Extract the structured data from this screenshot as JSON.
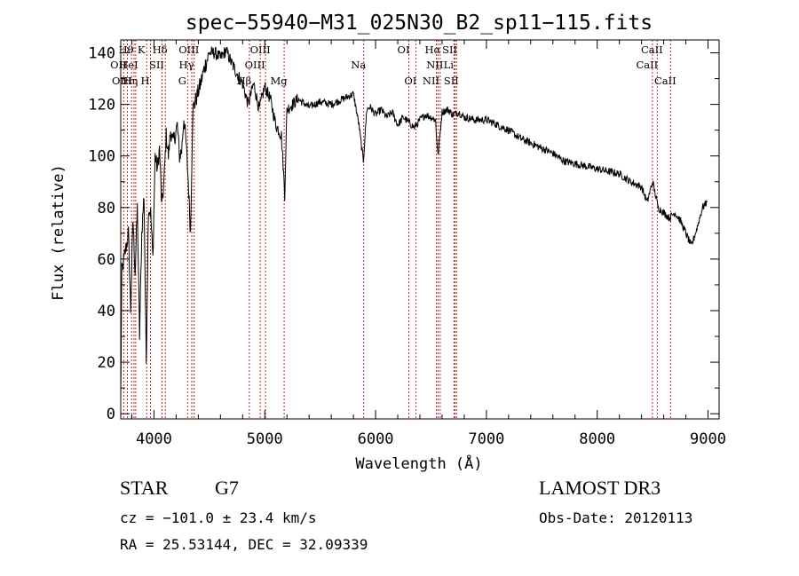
{
  "chart_data": {
    "type": "line",
    "title": "spec−55940−M31_025N30_B2_sp11−115.fits",
    "xlabel": "Wavelength (Å)",
    "ylabel": "Flux (relative)",
    "xlim": [
      3700,
      9100
    ],
    "ylim": [
      -2,
      145
    ],
    "xticks": [
      4000,
      5000,
      6000,
      7000,
      8000,
      9000
    ],
    "yticks": [
      0,
      20,
      40,
      60,
      80,
      100,
      120,
      140
    ],
    "line_color": "#000000",
    "marker_color": "#cc2222",
    "spectrum": {
      "name": "flux",
      "x": [
        3700,
        3710,
        3730,
        3750,
        3770,
        3790,
        3810,
        3830,
        3850,
        3870,
        3890,
        3910,
        3930,
        3950,
        3970,
        3990,
        4010,
        4030,
        4050,
        4070,
        4090,
        4110,
        4130,
        4150,
        4170,
        4190,
        4210,
        4230,
        4250,
        4270,
        4290,
        4310,
        4330,
        4350,
        4380,
        4420,
        4460,
        4500,
        4550,
        4600,
        4650,
        4700,
        4750,
        4800,
        4850,
        4900,
        4950,
        5000,
        5050,
        5100,
        5150,
        5180,
        5200,
        5250,
        5300,
        5400,
        5500,
        5600,
        5700,
        5800,
        5850,
        5890,
        5920,
        5950,
        6000,
        6050,
        6100,
        6150,
        6200,
        6250,
        6300,
        6350,
        6400,
        6450,
        6500,
        6540,
        6563,
        6600,
        6650,
        6700,
        6750,
        6800,
        6900,
        7000,
        7100,
        7200,
        7300,
        7400,
        7500,
        7600,
        7700,
        7800,
        7900,
        8000,
        8100,
        8200,
        8300,
        8400,
        8450,
        8500,
        8550,
        8600,
        8650,
        8700,
        8750,
        8800,
        8850,
        8900,
        8950,
        8990
      ],
      "y": [
        5,
        55,
        60,
        65,
        70,
        40,
        75,
        55,
        80,
        30,
        70,
        85,
        20,
        80,
        78,
        60,
        100,
        95,
        103,
        80,
        90,
        108,
        100,
        110,
        105,
        108,
        112,
        100,
        102,
        115,
        105,
        90,
        70,
        118,
        122,
        128,
        135,
        140,
        140,
        138,
        141,
        136,
        132,
        128,
        120,
        128,
        118,
        127,
        122,
        112,
        108,
        85,
        118,
        120,
        122,
        119,
        121,
        120,
        122,
        124,
        112,
        98,
        118,
        119,
        116,
        118,
        115,
        117,
        112,
        115,
        113,
        111,
        114,
        116,
        115,
        114,
        100,
        117,
        118,
        116,
        117,
        115,
        114,
        114,
        112,
        110,
        107,
        105,
        103,
        101,
        98,
        97,
        96,
        95,
        94,
        93,
        90,
        88,
        82,
        90,
        80,
        78,
        76,
        78,
        75,
        70,
        65,
        72,
        80,
        82
      ]
    },
    "lines": [
      {
        "label": "Hθ",
        "x": 3797,
        "row": 0
      },
      {
        "label": "K",
        "x": 3934,
        "row": 0
      },
      {
        "label": "Hδ",
        "x": 4102,
        "row": 0
      },
      {
        "label": "OII",
        "x": 3727,
        "row": 1
      },
      {
        "label": "HeI",
        "x": 3820,
        "row": 1
      },
      {
        "label": "SII",
        "x": 4072,
        "row": 1
      },
      {
        "label": "OIII",
        "x": 3760,
        "row": 2
      },
      {
        "label": "Hη",
        "x": 3835,
        "row": 2
      },
      {
        "label": "H",
        "x": 3969,
        "row": 2
      },
      {
        "label": "OIII",
        "x": 4363,
        "row": 0
      },
      {
        "label": "Hγ",
        "x": 4341,
        "row": 1
      },
      {
        "label": "G",
        "x": 4304,
        "row": 2
      },
      {
        "label": "OIII",
        "x": 5007,
        "row": 0
      },
      {
        "label": "OIII",
        "x": 4959,
        "row": 1
      },
      {
        "label": "Hβ",
        "x": 4861,
        "row": 2
      },
      {
        "label": "Mg",
        "x": 5175,
        "row": 2
      },
      {
        "label": "Na",
        "x": 5893,
        "row": 1
      },
      {
        "label": "OI",
        "x": 6300,
        "row": 0
      },
      {
        "label": "OI",
        "x": 6363,
        "row": 2
      },
      {
        "label": "Hα",
        "x": 6563,
        "row": 0
      },
      {
        "label": "SII",
        "x": 6717,
        "row": 0
      },
      {
        "label": "NII",
        "x": 6583,
        "row": 1
      },
      {
        "label": "Li",
        "x": 6707,
        "row": 1
      },
      {
        "label": "NII",
        "x": 6548,
        "row": 2
      },
      {
        "label": "SII",
        "x": 6731,
        "row": 2
      },
      {
        "label": "CaII",
        "x": 8542,
        "row": 0
      },
      {
        "label": "CaII",
        "x": 8498,
        "row": 1
      },
      {
        "label": "CaII",
        "x": 8662,
        "row": 2
      }
    ]
  },
  "info": {
    "class": "STAR",
    "subclass": "G7",
    "survey": "LAMOST DR3",
    "cz": "cz = −101.0 ± 23.4 km/s",
    "obsdate": "Obs-Date: 20120113",
    "coords": "RA =  25.53144, DEC =  32.09339"
  }
}
